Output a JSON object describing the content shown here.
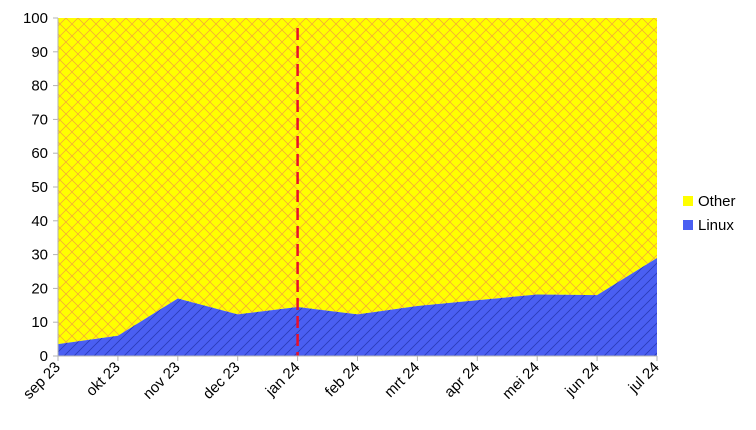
{
  "chart_data": {
    "type": "area",
    "stacked": true,
    "categories": [
      "sep 23",
      "okt 23",
      "nov 23",
      "dec 23",
      "jan 24",
      "feb 24",
      "mrt 24",
      "apr 24",
      "mei 24",
      "jun 24",
      "jul 24"
    ],
    "series": [
      {
        "name": "Linux",
        "values": [
          3.5,
          6,
          17,
          12.3,
          14.5,
          12.3,
          14.8,
          16.5,
          18.2,
          18,
          29
        ],
        "color": "#4a5ff2",
        "hatch": "diagonal"
      },
      {
        "name": "Other",
        "values": [
          96.5,
          94,
          83,
          87.7,
          85.5,
          87.7,
          85.2,
          83.5,
          81.8,
          82,
          71
        ],
        "color": "#ffff00",
        "hatch": "cross"
      }
    ],
    "ylim": [
      0,
      100
    ],
    "yticks": [
      "0",
      "10",
      "20",
      "30",
      "40",
      "50",
      "60",
      "70",
      "80",
      "90",
      "100"
    ],
    "marker_line": {
      "at_category": "jan 24",
      "color": "#e8102a",
      "style": "dashed"
    },
    "legend_position": "right",
    "grid": false
  }
}
